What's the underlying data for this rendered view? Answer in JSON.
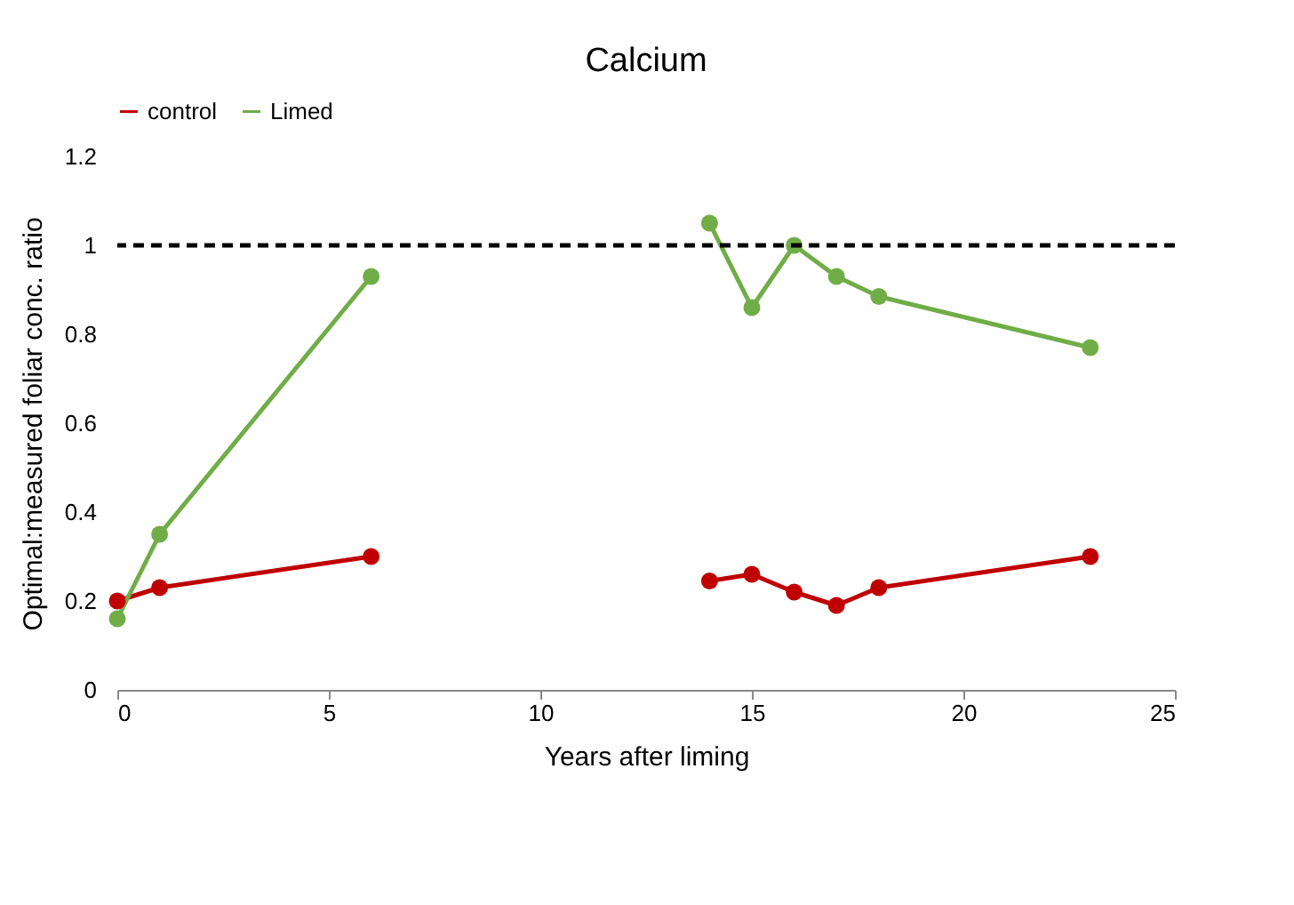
{
  "chart_data": {
    "type": "line",
    "title": "Calcium",
    "xlabel": "Years after liming",
    "ylabel": "Optimal:measured foliar conc. ratio",
    "x": [
      0,
      1,
      6,
      10,
      14,
      15,
      16,
      17,
      18,
      23
    ],
    "series": [
      {
        "name": "control",
        "color": "#c00000",
        "values": [
          0.2,
          0.23,
          0.3,
          null,
          0.245,
          0.26,
          0.22,
          0.19,
          0.23,
          0.3
        ]
      },
      {
        "name": "Limed",
        "color": "#70ad47",
        "values": [
          0.16,
          0.35,
          0.93,
          null,
          1.05,
          0.86,
          1.0,
          0.93,
          0.885,
          0.77
        ]
      }
    ],
    "xlim": [
      0,
      25
    ],
    "xticks": [
      0,
      5,
      10,
      15,
      20,
      25
    ],
    "ylim": [
      0,
      1.2
    ],
    "yticks": [
      0,
      0.2,
      0.4,
      0.6,
      0.8,
      1,
      1.2
    ],
    "ref_lines": [
      {
        "axis": "y",
        "value": 1,
        "color": "#000000",
        "line_style": "dashed"
      }
    ],
    "legend": "top",
    "marker": "circle",
    "line_style": "solid",
    "grid": false
  }
}
